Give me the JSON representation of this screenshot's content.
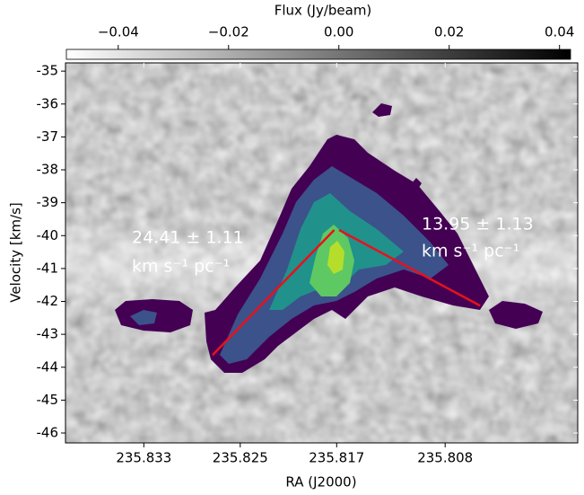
{
  "chart_data": {
    "type": "pv-diagram",
    "xlabel": "RA (J2000)",
    "ylabel": "Velocity [km/s]",
    "colorbar_label": "Flux (Jy/beam)",
    "clim": [
      -0.0494,
      0.042
    ],
    "cticks": [
      {
        "value": -0.04,
        "label": "−0.04"
      },
      {
        "value": -0.02,
        "label": "−0.02"
      },
      {
        "value": 0,
        "label": "0.00"
      },
      0.02,
      0.04
    ],
    "xlim": [
      235.8395,
      235.797
    ],
    "xticks": [
      235.833,
      235.825,
      235.817,
      235.808
    ],
    "ylim": [
      -34.75,
      -46.3
    ],
    "yticks": [
      -35,
      -36,
      -37,
      -38,
      -39,
      -40,
      -41,
      -42,
      -43,
      -44,
      -45,
      -46
    ],
    "fits": [
      {
        "label": "24.41 ± 1.11",
        "unit": "km s⁻¹ pc⁻¹",
        "color": "#e8111b",
        "x": [
          235.8273,
          235.8172
        ],
        "y": [
          -43.63,
          -39.83
        ]
      },
      {
        "label": "13.95 ± 1.13",
        "unit": "km s⁻¹ pc⁻¹",
        "color": "#e8111b",
        "x": [
          235.8168,
          235.8051
        ],
        "y": [
          -39.83,
          -42.13
        ]
      }
    ]
  }
}
